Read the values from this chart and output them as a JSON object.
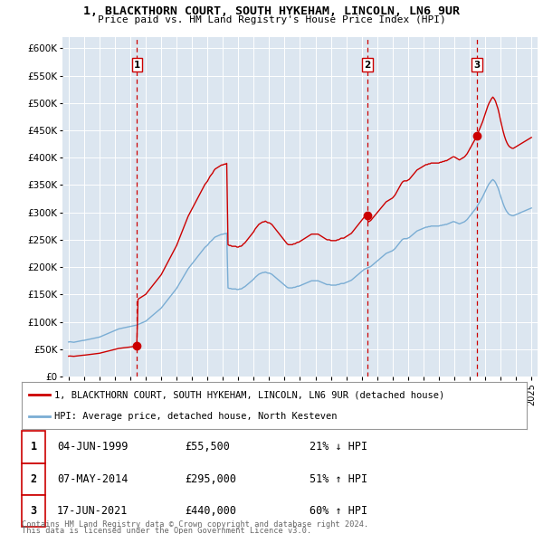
{
  "title": "1, BLACKTHORN COURT, SOUTH HYKEHAM, LINCOLN, LN6 9UR",
  "subtitle": "Price paid vs. HM Land Registry's House Price Index (HPI)",
  "legend_line1": "1, BLACKTHORN COURT, SOUTH HYKEHAM, LINCOLN, LN6 9UR (detached house)",
  "legend_line2": "HPI: Average price, detached house, North Kesteven",
  "footer_line1": "Contains HM Land Registry data © Crown copyright and database right 2024.",
  "footer_line2": "This data is licensed under the Open Government Licence v3.0.",
  "sale_color": "#cc0000",
  "hpi_color": "#7aadd4",
  "background_color": "#dce6f0",
  "ylim": [
    0,
    620000
  ],
  "yticks": [
    0,
    50000,
    100000,
    150000,
    200000,
    250000,
    300000,
    350000,
    400000,
    450000,
    500000,
    550000,
    600000
  ],
  "sale_dates": [
    1999.43,
    2014.36,
    2021.46
  ],
  "sale_prices": [
    55500,
    295000,
    440000
  ],
  "sale_labels": [
    "1",
    "2",
    "3"
  ],
  "transactions": [
    {
      "num": 1,
      "date": "04-JUN-1999",
      "price": "£55,500",
      "change": "21% ↓ HPI"
    },
    {
      "num": 2,
      "date": "07-MAY-2014",
      "price": "£295,000",
      "change": "51% ↑ HPI"
    },
    {
      "num": 3,
      "date": "17-JUN-2021",
      "price": "£440,000",
      "change": "60% ↑ HPI"
    }
  ],
  "hpi_years": [
    1995.0,
    1995.083,
    1995.167,
    1995.25,
    1995.333,
    1995.417,
    1995.5,
    1995.583,
    1995.667,
    1995.75,
    1995.833,
    1995.917,
    1996.0,
    1996.083,
    1996.167,
    1996.25,
    1996.333,
    1996.417,
    1996.5,
    1996.583,
    1996.667,
    1996.75,
    1996.833,
    1996.917,
    1997.0,
    1997.083,
    1997.167,
    1997.25,
    1997.333,
    1997.417,
    1997.5,
    1997.583,
    1997.667,
    1997.75,
    1997.833,
    1997.917,
    1998.0,
    1998.083,
    1998.167,
    1998.25,
    1998.333,
    1998.417,
    1998.5,
    1998.583,
    1998.667,
    1998.75,
    1998.833,
    1998.917,
    1999.0,
    1999.083,
    1999.167,
    1999.25,
    1999.333,
    1999.417,
    1999.5,
    1999.583,
    1999.667,
    1999.75,
    1999.833,
    1999.917,
    2000.0,
    2000.083,
    2000.167,
    2000.25,
    2000.333,
    2000.417,
    2000.5,
    2000.583,
    2000.667,
    2000.75,
    2000.833,
    2000.917,
    2001.0,
    2001.083,
    2001.167,
    2001.25,
    2001.333,
    2001.417,
    2001.5,
    2001.583,
    2001.667,
    2001.75,
    2001.833,
    2001.917,
    2002.0,
    2002.083,
    2002.167,
    2002.25,
    2002.333,
    2002.417,
    2002.5,
    2002.583,
    2002.667,
    2002.75,
    2002.833,
    2002.917,
    2003.0,
    2003.083,
    2003.167,
    2003.25,
    2003.333,
    2003.417,
    2003.5,
    2003.583,
    2003.667,
    2003.75,
    2003.833,
    2003.917,
    2004.0,
    2004.083,
    2004.167,
    2004.25,
    2004.333,
    2004.417,
    2004.5,
    2004.583,
    2004.667,
    2004.75,
    2004.833,
    2004.917,
    2005.0,
    2005.083,
    2005.167,
    2005.25,
    2005.333,
    2005.417,
    2005.5,
    2005.583,
    2005.667,
    2005.75,
    2005.833,
    2005.917,
    2006.0,
    2006.083,
    2006.167,
    2006.25,
    2006.333,
    2006.417,
    2006.5,
    2006.583,
    2006.667,
    2006.75,
    2006.833,
    2006.917,
    2007.0,
    2007.083,
    2007.167,
    2007.25,
    2007.333,
    2007.417,
    2007.5,
    2007.583,
    2007.667,
    2007.75,
    2007.833,
    2007.917,
    2008.0,
    2008.083,
    2008.167,
    2008.25,
    2008.333,
    2008.417,
    2008.5,
    2008.583,
    2008.667,
    2008.75,
    2008.833,
    2008.917,
    2009.0,
    2009.083,
    2009.167,
    2009.25,
    2009.333,
    2009.417,
    2009.5,
    2009.583,
    2009.667,
    2009.75,
    2009.833,
    2009.917,
    2010.0,
    2010.083,
    2010.167,
    2010.25,
    2010.333,
    2010.417,
    2010.5,
    2010.583,
    2010.667,
    2010.75,
    2010.833,
    2010.917,
    2011.0,
    2011.083,
    2011.167,
    2011.25,
    2011.333,
    2011.417,
    2011.5,
    2011.583,
    2011.667,
    2011.75,
    2011.833,
    2011.917,
    2012.0,
    2012.083,
    2012.167,
    2012.25,
    2012.333,
    2012.417,
    2012.5,
    2012.583,
    2012.667,
    2012.75,
    2012.833,
    2012.917,
    2013.0,
    2013.083,
    2013.167,
    2013.25,
    2013.333,
    2013.417,
    2013.5,
    2013.583,
    2013.667,
    2013.75,
    2013.833,
    2013.917,
    2014.0,
    2014.083,
    2014.167,
    2014.25,
    2014.333,
    2014.417,
    2014.5,
    2014.583,
    2014.667,
    2014.75,
    2014.833,
    2014.917,
    2015.0,
    2015.083,
    2015.167,
    2015.25,
    2015.333,
    2015.417,
    2015.5,
    2015.583,
    2015.667,
    2015.75,
    2015.833,
    2015.917,
    2016.0,
    2016.083,
    2016.167,
    2016.25,
    2016.333,
    2016.417,
    2016.5,
    2016.583,
    2016.667,
    2016.75,
    2016.833,
    2016.917,
    2017.0,
    2017.083,
    2017.167,
    2017.25,
    2017.333,
    2017.417,
    2017.5,
    2017.583,
    2017.667,
    2017.75,
    2017.833,
    2017.917,
    2018.0,
    2018.083,
    2018.167,
    2018.25,
    2018.333,
    2018.417,
    2018.5,
    2018.583,
    2018.667,
    2018.75,
    2018.833,
    2018.917,
    2019.0,
    2019.083,
    2019.167,
    2019.25,
    2019.333,
    2019.417,
    2019.5,
    2019.583,
    2019.667,
    2019.75,
    2019.833,
    2019.917,
    2020.0,
    2020.083,
    2020.167,
    2020.25,
    2020.333,
    2020.417,
    2020.5,
    2020.583,
    2020.667,
    2020.75,
    2020.833,
    2020.917,
    2021.0,
    2021.083,
    2021.167,
    2021.25,
    2021.333,
    2021.417,
    2021.5,
    2021.583,
    2021.667,
    2021.75,
    2021.833,
    2021.917,
    2022.0,
    2022.083,
    2022.167,
    2022.25,
    2022.333,
    2022.417,
    2022.5,
    2022.583,
    2022.667,
    2022.75,
    2022.833,
    2022.917,
    2023.0,
    2023.083,
    2023.167,
    2023.25,
    2023.333,
    2023.417,
    2023.5,
    2023.583,
    2023.667,
    2023.75,
    2023.833,
    2023.917,
    2024.0,
    2024.083,
    2024.167,
    2024.25,
    2024.333,
    2024.417,
    2024.5,
    2024.583,
    2024.667,
    2024.75,
    2024.833,
    2024.917,
    2025.0
  ],
  "hpi_values": [
    63000,
    63500,
    63200,
    62800,
    62500,
    63000,
    63500,
    64000,
    64500,
    65000,
    65500,
    65800,
    66000,
    66500,
    67000,
    67500,
    68000,
    68500,
    69000,
    69500,
    70000,
    70500,
    71000,
    71500,
    72000,
    73000,
    74000,
    75000,
    76000,
    77000,
    78000,
    79000,
    80000,
    81000,
    82000,
    83000,
    84000,
    85000,
    86000,
    87000,
    87500,
    88000,
    88500,
    89000,
    89500,
    90000,
    90500,
    91000,
    91500,
    92000,
    92500,
    93000,
    93500,
    94000,
    95000,
    96000,
    97000,
    98000,
    99000,
    100000,
    101000,
    103000,
    105000,
    107000,
    109000,
    111000,
    113000,
    115000,
    117000,
    119000,
    121000,
    123000,
    125000,
    128000,
    131000,
    134000,
    137000,
    140000,
    143000,
    146000,
    149000,
    152000,
    155000,
    158000,
    161000,
    165000,
    169000,
    173000,
    177000,
    181000,
    185000,
    189000,
    193000,
    197000,
    200000,
    203000,
    206000,
    209000,
    212000,
    215000,
    218000,
    221000,
    224000,
    227000,
    230000,
    233000,
    236000,
    238000,
    240000,
    243000,
    246000,
    248000,
    250000,
    253000,
    255000,
    256000,
    257000,
    258000,
    259000,
    260000,
    260000,
    261000,
    261000,
    262000,
    162000,
    161000,
    161000,
    160000,
    160000,
    160000,
    160000,
    159000,
    159000,
    160000,
    160000,
    161000,
    163000,
    164000,
    166000,
    168000,
    170000,
    172000,
    174000,
    176000,
    178000,
    181000,
    183000,
    185000,
    187000,
    188000,
    189000,
    190000,
    190000,
    191000,
    190000,
    189000,
    189000,
    188000,
    187000,
    185000,
    183000,
    181000,
    179000,
    177000,
    175000,
    173000,
    171000,
    169000,
    167000,
    165000,
    163000,
    162000,
    162000,
    162000,
    162000,
    163000,
    163000,
    164000,
    165000,
    165000,
    166000,
    167000,
    168000,
    169000,
    170000,
    171000,
    172000,
    173000,
    174000,
    175000,
    175000,
    175000,
    175000,
    175000,
    175000,
    174000,
    173000,
    172000,
    171000,
    170000,
    169000,
    168000,
    168000,
    168000,
    167000,
    167000,
    167000,
    167000,
    167000,
    168000,
    168000,
    169000,
    170000,
    170000,
    170000,
    171000,
    172000,
    173000,
    174000,
    175000,
    176000,
    178000,
    180000,
    182000,
    184000,
    186000,
    188000,
    190000,
    192000,
    194000,
    196000,
    197000,
    198000,
    199000,
    200000,
    201000,
    203000,
    205000,
    207000,
    209000,
    211000,
    213000,
    215000,
    217000,
    219000,
    221000,
    223000,
    225000,
    226000,
    227000,
    228000,
    229000,
    230000,
    232000,
    234000,
    237000,
    240000,
    243000,
    246000,
    249000,
    251000,
    252000,
    252000,
    252000,
    253000,
    254000,
    256000,
    258000,
    260000,
    262000,
    264000,
    266000,
    267000,
    268000,
    269000,
    270000,
    271000,
    272000,
    273000,
    273000,
    274000,
    274000,
    275000,
    275000,
    275000,
    275000,
    275000,
    275000,
    275000,
    276000,
    276000,
    277000,
    277000,
    278000,
    278000,
    279000,
    280000,
    281000,
    282000,
    283000,
    283000,
    282000,
    281000,
    280000,
    279000,
    280000,
    281000,
    282000,
    283000,
    285000,
    287000,
    290000,
    293000,
    296000,
    299000,
    302000,
    305000,
    308000,
    312000,
    316000,
    320000,
    324000,
    328000,
    333000,
    338000,
    343000,
    348000,
    352000,
    355000,
    358000,
    360000,
    358000,
    355000,
    350000,
    345000,
    338000,
    330000,
    323000,
    316000,
    310000,
    305000,
    301000,
    298000,
    296000,
    295000,
    294000,
    294000,
    295000,
    296000,
    297000,
    298000,
    299000,
    300000,
    301000,
    302000,
    303000,
    304000,
    305000,
    306000,
    307000,
    308000
  ]
}
